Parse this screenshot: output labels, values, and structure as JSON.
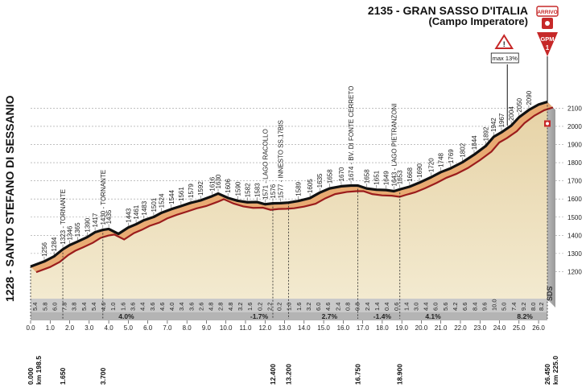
{
  "header": {
    "finish_line1": "2135 - GRAN SASSO D'ITALIA",
    "finish_line2": "(Campo Imperatore)",
    "arrivo_label": "ARRIVO",
    "gpm_label": "GPM",
    "gpm_cat": "1",
    "max_gradient": "max 13%",
    "start_label": "1228 - SANTO STEFANO DI SESSANIO",
    "logo": "SDS"
  },
  "chart_data": {
    "type": "area",
    "title": "2135 - GRAN SASSO D'ITALIA (Campo Imperatore)",
    "xlabel": "km",
    "ylabel": "",
    "xlim": [
      0,
      26.45
    ],
    "ylim": [
      1100,
      2100
    ],
    "y_ticks": [
      1200,
      1300,
      1400,
      1500,
      1600,
      1700,
      1800,
      1900,
      2000,
      2100
    ],
    "x_ticks": [
      "0.0",
      "1.0",
      "2.0",
      "3.0",
      "4.0",
      "5.0",
      "6.0",
      "7.0",
      "8.0",
      "9.0",
      "10.0",
      "11.0",
      "12.0",
      "13.0",
      "14.0",
      "15.0",
      "16.0",
      "17.0",
      "18.0",
      "19.0",
      "20.0",
      "21.0",
      "22.0",
      "23.0",
      "24.0",
      "25.0",
      "26.0"
    ],
    "profile": [
      {
        "km": 0.0,
        "alt": 1228
      },
      {
        "km": 0.7,
        "alt": 1256
      },
      {
        "km": 1.2,
        "alt": 1284
      },
      {
        "km": 1.65,
        "alt": 1323
      },
      {
        "km": 2.0,
        "alt": 1346
      },
      {
        "km": 2.4,
        "alt": 1365
      },
      {
        "km": 2.9,
        "alt": 1390
      },
      {
        "km": 3.3,
        "alt": 1417
      },
      {
        "km": 3.7,
        "alt": 1430
      },
      {
        "km": 4.0,
        "alt": 1435
      },
      {
        "km": 4.5,
        "alt": 1408
      },
      {
        "km": 5.0,
        "alt": 1443
      },
      {
        "km": 5.4,
        "alt": 1461
      },
      {
        "km": 5.8,
        "alt": 1483
      },
      {
        "km": 6.3,
        "alt": 1501
      },
      {
        "km": 6.7,
        "alt": 1524
      },
      {
        "km": 7.2,
        "alt": 1544
      },
      {
        "km": 7.7,
        "alt": 1561
      },
      {
        "km": 8.2,
        "alt": 1579
      },
      {
        "km": 8.7,
        "alt": 1592
      },
      {
        "km": 9.3,
        "alt": 1616
      },
      {
        "km": 9.6,
        "alt": 1630
      },
      {
        "km": 10.1,
        "alt": 1606
      },
      {
        "km": 10.6,
        "alt": 1590
      },
      {
        "km": 11.1,
        "alt": 1582
      },
      {
        "km": 11.6,
        "alt": 1583
      },
      {
        "km": 12.0,
        "alt": 1571
      },
      {
        "km": 12.4,
        "alt": 1576
      },
      {
        "km": 12.8,
        "alt": 1577
      },
      {
        "km": 13.2,
        "alt": 1580
      },
      {
        "km": 13.7,
        "alt": 1589
      },
      {
        "km": 14.3,
        "alt": 1605
      },
      {
        "km": 14.8,
        "alt": 1635
      },
      {
        "km": 15.3,
        "alt": 1658
      },
      {
        "km": 15.9,
        "alt": 1670
      },
      {
        "km": 16.4,
        "alt": 1674
      },
      {
        "km": 16.75,
        "alt": 1674
      },
      {
        "km": 17.2,
        "alt": 1658
      },
      {
        "km": 17.7,
        "alt": 1651
      },
      {
        "km": 18.2,
        "alt": 1649
      },
      {
        "km": 18.6,
        "alt": 1643
      },
      {
        "km": 18.9,
        "alt": 1653
      },
      {
        "km": 19.4,
        "alt": 1668
      },
      {
        "km": 19.9,
        "alt": 1690
      },
      {
        "km": 20.5,
        "alt": 1720
      },
      {
        "km": 21.0,
        "alt": 1748
      },
      {
        "km": 21.5,
        "alt": 1769
      },
      {
        "km": 22.1,
        "alt": 1802
      },
      {
        "km": 22.7,
        "alt": 1844
      },
      {
        "km": 23.3,
        "alt": 1892
      },
      {
        "km": 23.7,
        "alt": 1942
      },
      {
        "km": 24.1,
        "alt": 1967
      },
      {
        "km": 24.6,
        "alt": 2004
      },
      {
        "km": 25.0,
        "alt": 2050
      },
      {
        "km": 25.5,
        "alt": 2090
      },
      {
        "km": 26.0,
        "alt": 2120
      },
      {
        "km": 26.45,
        "alt": 2135
      }
    ],
    "altitude_labels": [
      {
        "km": 0.7,
        "text": "1256"
      },
      {
        "km": 1.2,
        "text": "1284"
      },
      {
        "km": 1.65,
        "text": "1323 - TORNANTE"
      },
      {
        "km": 2.0,
        "text": "1346"
      },
      {
        "km": 2.4,
        "text": "1365"
      },
      {
        "km": 2.9,
        "text": "1390"
      },
      {
        "km": 3.3,
        "text": "1417"
      },
      {
        "km": 3.7,
        "text": "1430 - TORNANTE"
      },
      {
        "km": 4.0,
        "text": "1435"
      },
      {
        "km": 5.0,
        "text": "1443"
      },
      {
        "km": 5.4,
        "text": "1461"
      },
      {
        "km": 5.8,
        "text": "1483"
      },
      {
        "km": 6.3,
        "text": "1501"
      },
      {
        "km": 6.7,
        "text": "1524"
      },
      {
        "km": 7.2,
        "text": "1544"
      },
      {
        "km": 7.7,
        "text": "1561"
      },
      {
        "km": 8.2,
        "text": "1579"
      },
      {
        "km": 8.7,
        "text": "1592"
      },
      {
        "km": 9.3,
        "text": "1616"
      },
      {
        "km": 9.6,
        "text": "1630"
      },
      {
        "km": 10.1,
        "text": "1606"
      },
      {
        "km": 10.6,
        "text": "1590"
      },
      {
        "km": 11.1,
        "text": "1582"
      },
      {
        "km": 11.6,
        "text": "1583"
      },
      {
        "km": 12.0,
        "text": "1571 - LAGO RACOLLO"
      },
      {
        "km": 12.4,
        "text": "1576"
      },
      {
        "km": 12.8,
        "text": "1577 - INNESTO SS.17BIS"
      },
      {
        "km": 13.7,
        "text": "1589"
      },
      {
        "km": 14.3,
        "text": "1605"
      },
      {
        "km": 14.8,
        "text": "1635"
      },
      {
        "km": 15.3,
        "text": "1658"
      },
      {
        "km": 15.9,
        "text": "1670"
      },
      {
        "km": 16.4,
        "text": "1674 - BV. DI FONTE CERRETO"
      },
      {
        "km": 17.2,
        "text": "1658"
      },
      {
        "km": 17.7,
        "text": "1651"
      },
      {
        "km": 18.2,
        "text": "1649"
      },
      {
        "km": 18.6,
        "text": "1643 - LAGO PIETRANZONI"
      },
      {
        "km": 18.9,
        "text": "1653"
      },
      {
        "km": 19.4,
        "text": "1668"
      },
      {
        "km": 19.9,
        "text": "1690"
      },
      {
        "km": 20.5,
        "text": "1720"
      },
      {
        "km": 21.0,
        "text": "1748"
      },
      {
        "km": 21.5,
        "text": "1769"
      },
      {
        "km": 22.1,
        "text": "1802"
      },
      {
        "km": 22.7,
        "text": "1844"
      },
      {
        "km": 23.3,
        "text": "1892"
      },
      {
        "km": 23.7,
        "text": "1942"
      },
      {
        "km": 24.1,
        "text": "1967"
      },
      {
        "km": 24.6,
        "text": "2004"
      },
      {
        "km": 25.0,
        "text": "2050"
      },
      {
        "km": 25.5,
        "text": "2090"
      }
    ],
    "segment_gradients": [
      {
        "km": 0.5,
        "text": "5.4"
      },
      {
        "km": 1.0,
        "text": "5.8"
      },
      {
        "km": 1.5,
        "text": "6.0"
      },
      {
        "km": 2.0,
        "text": "7.8"
      },
      {
        "km": 2.5,
        "text": "3.8"
      },
      {
        "km": 3.0,
        "text": "5.4"
      },
      {
        "km": 3.5,
        "text": "5.4"
      },
      {
        "km": 4.0,
        "text": "4.6"
      },
      {
        "km": 4.5,
        "text": "1.0"
      },
      {
        "km": 5.0,
        "text": "1.6"
      },
      {
        "km": 5.5,
        "text": "3.6"
      },
      {
        "km": 6.0,
        "text": "4.4"
      },
      {
        "km": 6.5,
        "text": "3.6"
      },
      {
        "km": 7.0,
        "text": "4.6"
      },
      {
        "km": 7.5,
        "text": "4.0"
      },
      {
        "km": 8.0,
        "text": "3.4"
      },
      {
        "km": 8.5,
        "text": "3.6"
      },
      {
        "km": 9.0,
        "text": "2.6"
      },
      {
        "km": 9.5,
        "text": "4.8"
      },
      {
        "km": 10.0,
        "text": "2.8"
      },
      {
        "km": 10.5,
        "text": "4.8"
      },
      {
        "km": 11.0,
        "text": "3.2"
      },
      {
        "km": 11.5,
        "text": "1.6"
      },
      {
        "km": 12.0,
        "text": "0.2"
      },
      {
        "km": 12.5,
        "text": "2.2"
      },
      {
        "km": 13.0,
        "text": "0.2"
      },
      {
        "km": 13.5,
        "text": "1.0"
      },
      {
        "km": 14.0,
        "text": "1.6"
      },
      {
        "km": 14.5,
        "text": "3.2"
      },
      {
        "km": 15.0,
        "text": "6.0"
      },
      {
        "km": 15.5,
        "text": "4.6"
      },
      {
        "km": 16.0,
        "text": "2.4"
      },
      {
        "km": 16.5,
        "text": "0.8"
      },
      {
        "km": 17.0,
        "text": "0.8"
      },
      {
        "km": 17.5,
        "text": "2.4"
      },
      {
        "km": 18.0,
        "text": "1.4"
      },
      {
        "km": 18.5,
        "text": "0.4"
      },
      {
        "km": 19.0,
        "text": "0.6"
      },
      {
        "km": 19.5,
        "text": "1.4"
      },
      {
        "km": 20.0,
        "text": "3.0"
      },
      {
        "km": 20.5,
        "text": "4.4"
      },
      {
        "km": 21.0,
        "text": "6.0"
      },
      {
        "km": 21.5,
        "text": "5.6"
      },
      {
        "km": 22.0,
        "text": "4.2"
      },
      {
        "km": 22.5,
        "text": "6.6"
      },
      {
        "km": 23.0,
        "text": "8.4"
      },
      {
        "km": 23.5,
        "text": "9.6"
      },
      {
        "km": 24.0,
        "text": "10.0"
      },
      {
        "km": 24.5,
        "text": "5.0"
      },
      {
        "km": 25.0,
        "text": "7.4"
      },
      {
        "km": 25.5,
        "text": "9.2"
      },
      {
        "km": 26.0,
        "text": "8.0"
      },
      {
        "km": 26.4,
        "text": "8.2"
      }
    ],
    "average_gradients": [
      {
        "km": 4.9,
        "text": "4.0%"
      },
      {
        "km": 11.7,
        "text": "-1.7%"
      },
      {
        "km": 15.3,
        "text": "2.7%"
      },
      {
        "km": 18.0,
        "text": "-1.4%"
      },
      {
        "km": 20.6,
        "text": "4.1%"
      },
      {
        "km": 25.3,
        "text": "8.2%"
      }
    ],
    "km_markers": [
      {
        "km": 0.0,
        "text": "0.000",
        "sub": "km 198.5"
      },
      {
        "km": 1.65,
        "text": "1.650"
      },
      {
        "km": 3.7,
        "text": "3.700"
      },
      {
        "km": 12.4,
        "text": "12.400"
      },
      {
        "km": 13.2,
        "text": "13.200"
      },
      {
        "km": 16.75,
        "text": "16.750"
      },
      {
        "km": 18.9,
        "text": "18.900"
      },
      {
        "km": 26.45,
        "text": "26.450",
        "sub": "km 225.0"
      }
    ],
    "max_gradient_km": 24.4,
    "gpm_km": 26.45
  }
}
